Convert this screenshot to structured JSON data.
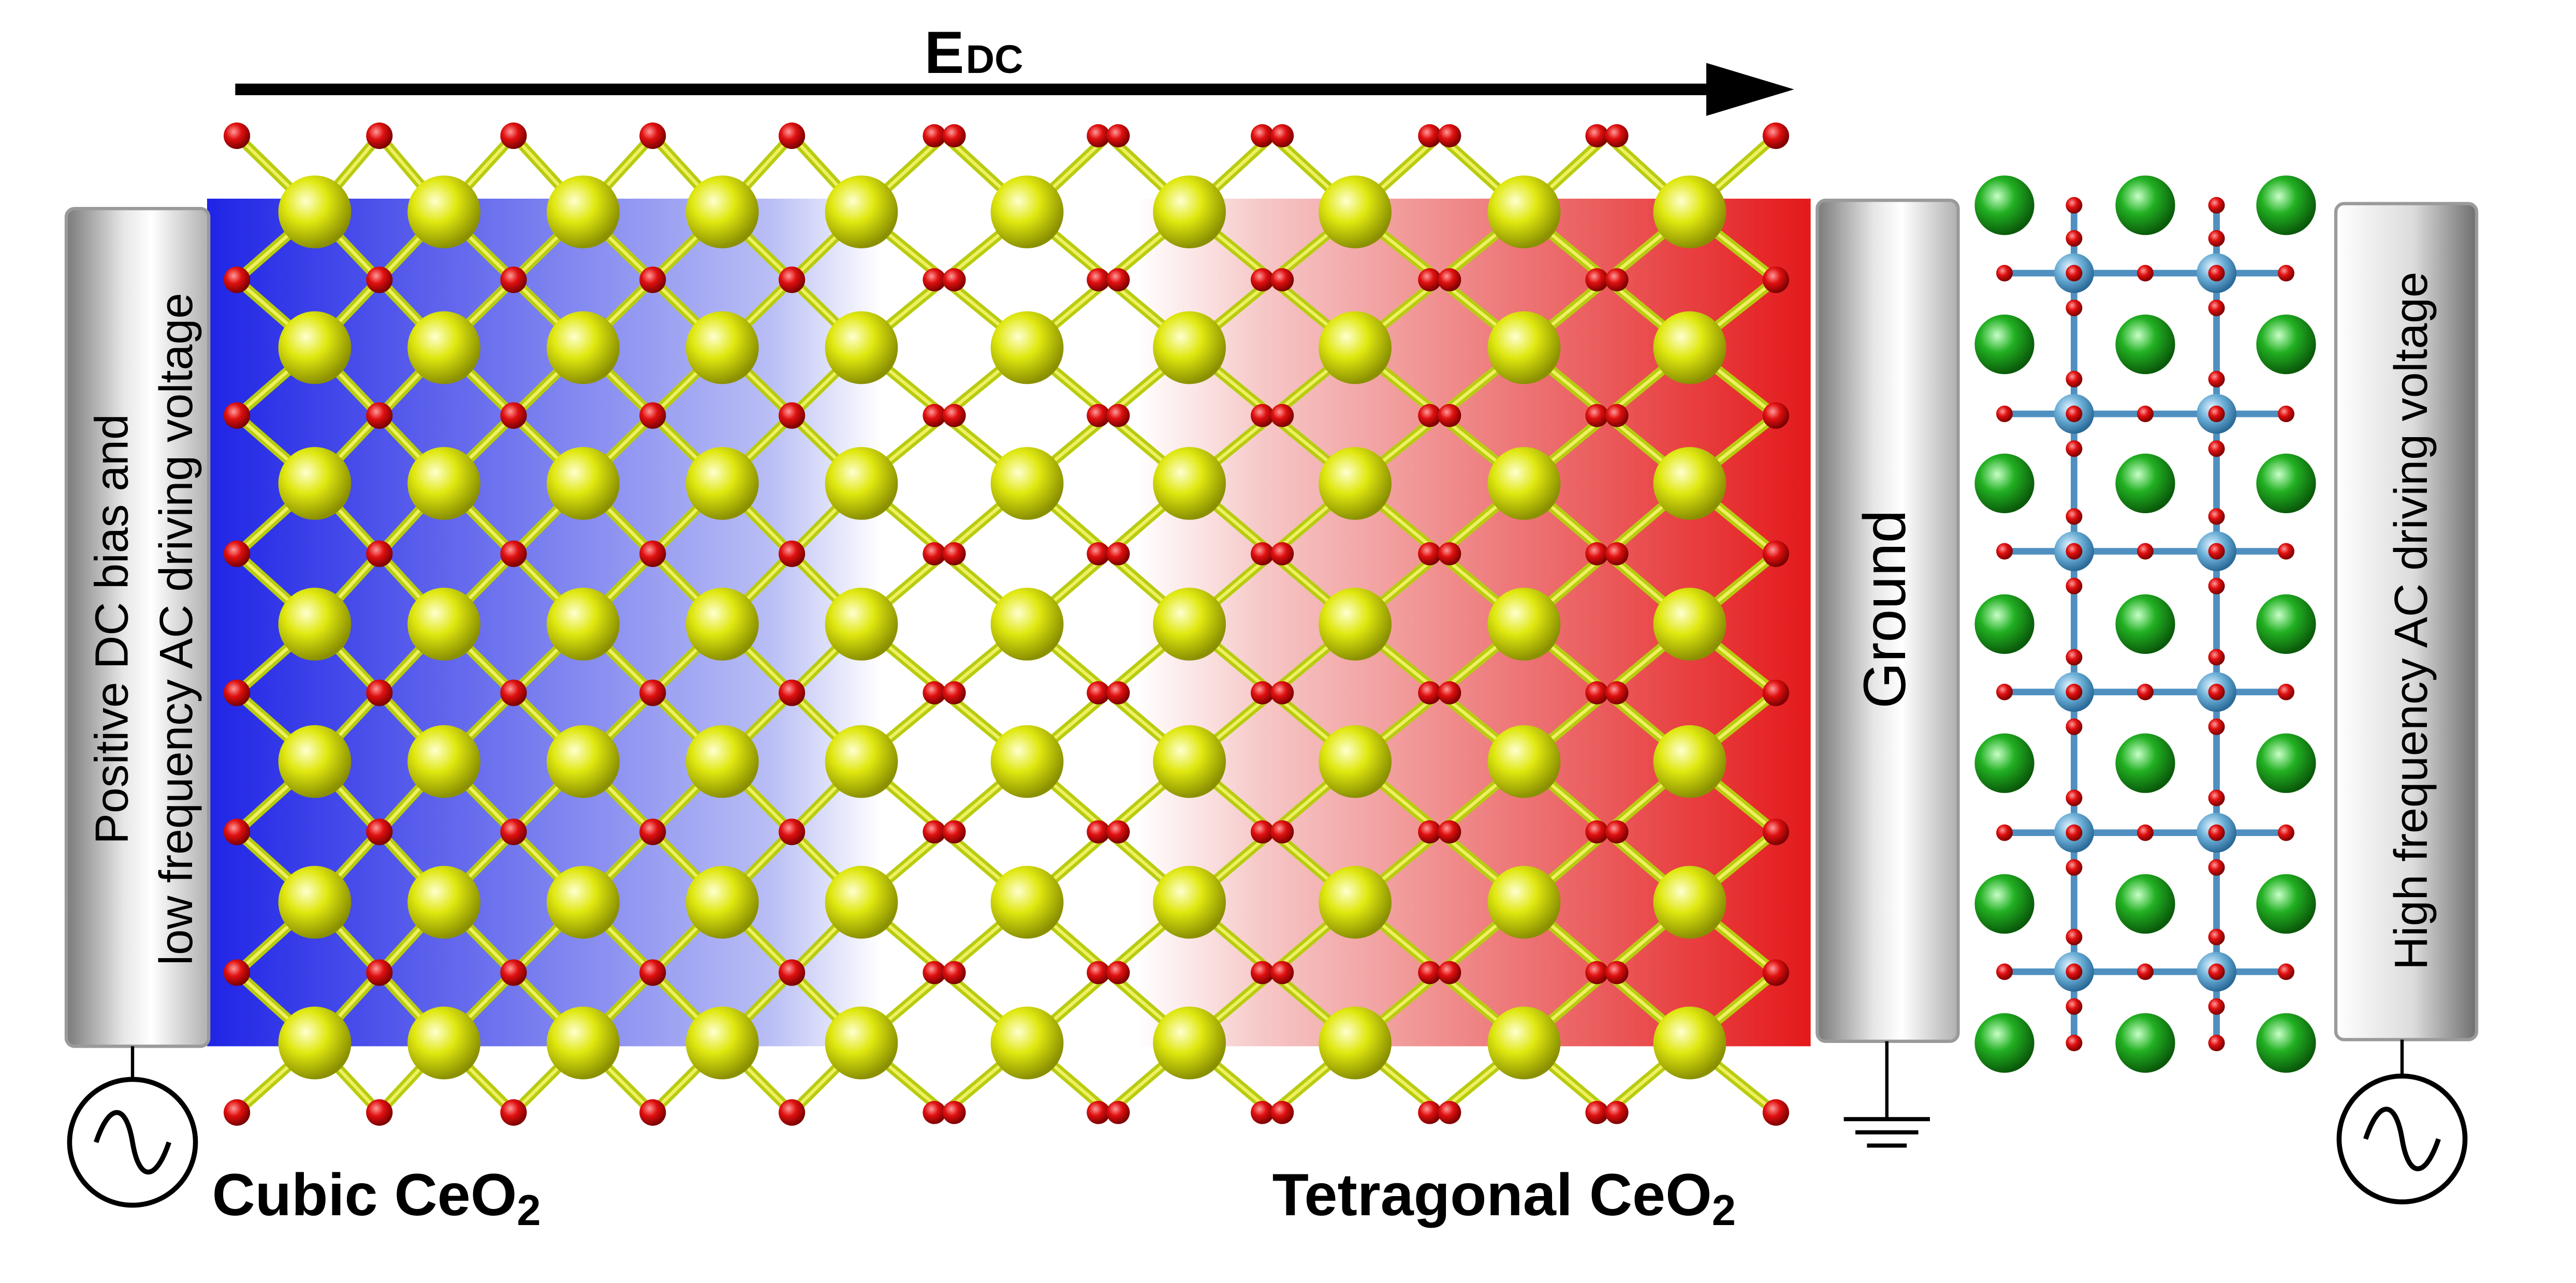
{
  "field_label": {
    "main": "E",
    "sub": "DC"
  },
  "left_electrode": {
    "line1": "Positive DC bias and",
    "line2": "low frequency AC driving voltage"
  },
  "ground_electrode": {
    "label": "Ground"
  },
  "right_electrode": {
    "label": "High frequency AC driving voltage"
  },
  "phase_left": {
    "main": "Cubic CeO",
    "sub": "2"
  },
  "phase_right": {
    "main": "Tetragonal CeO",
    "sub": "2"
  },
  "colors": {
    "cerium": "#d8e000",
    "oxygen": "#d81010",
    "bond": "#b8cc10",
    "cubic_gradient": "#1f24e6",
    "tetragonal_gradient": "#e4191b",
    "perovskite_a_site": "#22b022",
    "perovskite_b_site": "#6aaed6",
    "perovskite_bond": "#4f90c0",
    "electrode_grey": "#8a8a8a"
  },
  "icons": {
    "ac_source_left": "ac-source-icon",
    "ac_source_right": "ac-source-icon",
    "ground": "ground-symbol-icon",
    "field_arrow": "arrow-right-icon"
  }
}
